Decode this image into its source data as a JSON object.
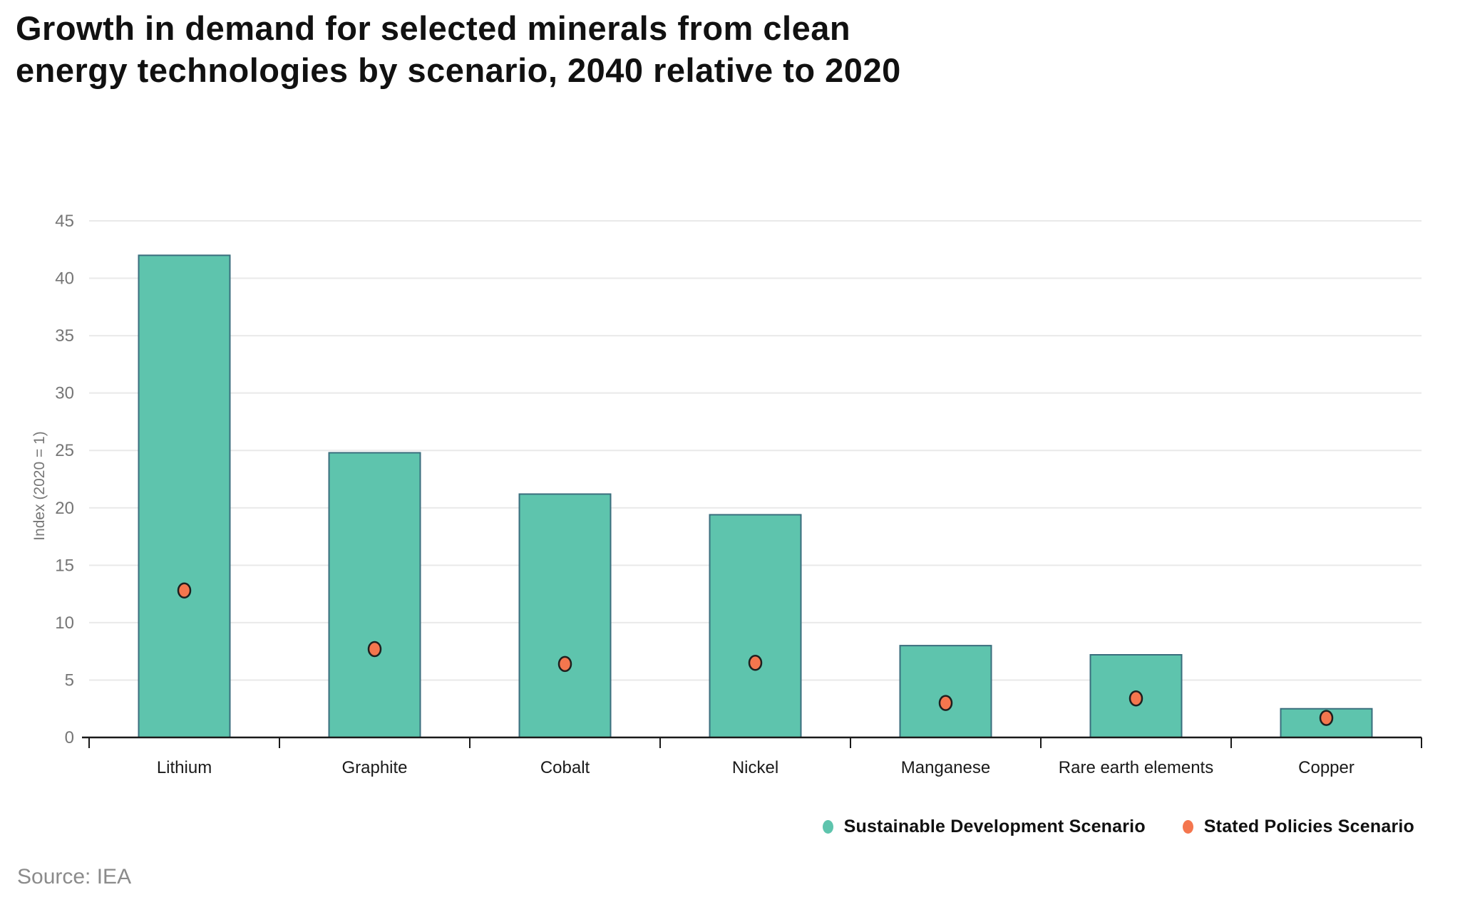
{
  "title": {
    "lines": [
      "Growth in demand for selected minerals from clean",
      "energy technologies by scenario, 2040 relative to 2020"
    ]
  },
  "source": {
    "text": "Source: IEA"
  },
  "legend": {
    "items": [
      {
        "label": "Sustainable Development Scenario",
        "color": "#5ec4ad"
      },
      {
        "label": "Stated Policies Scenario",
        "color": "#f4764e"
      }
    ]
  },
  "colors": {
    "bar_fill": "#5ec4ad",
    "bar_border": "#3a6e7d",
    "dot_fill": "#f4764e",
    "dot_border": "#1f1f1f",
    "grid_line": "#e9e9e9",
    "axis_line": "#1a1a1a",
    "tick_label": "#767676",
    "category_label": "#1a1a1a",
    "title_text": "#111111",
    "source_text": "#8b8b8b"
  },
  "chart_data": {
    "type": "bar",
    "categories": [
      "Lithium",
      "Graphite",
      "Cobalt",
      "Nickel",
      "Manganese",
      "Rare earth elements",
      "Copper"
    ],
    "series": [
      {
        "name": "Sustainable Development Scenario",
        "type": "bar",
        "color": "#5ec4ad",
        "border_color": "#3a6e7d",
        "values": [
          42.0,
          24.8,
          21.2,
          19.4,
          8.0,
          7.2,
          2.5
        ]
      },
      {
        "name": "Stated Policies Scenario",
        "type": "scatter",
        "color": "#f4764e",
        "border_color": "#1f1f1f",
        "values": [
          12.8,
          7.7,
          6.4,
          6.5,
          3.0,
          3.4,
          1.7
        ]
      }
    ],
    "xlabel": "",
    "ylabel": "Index (2020 = 1)",
    "ylim": [
      0,
      45
    ],
    "yticks": [
      0,
      5,
      10,
      15,
      20,
      25,
      30,
      35,
      40,
      45
    ],
    "grid": true,
    "legend_position": "bottom-right"
  }
}
